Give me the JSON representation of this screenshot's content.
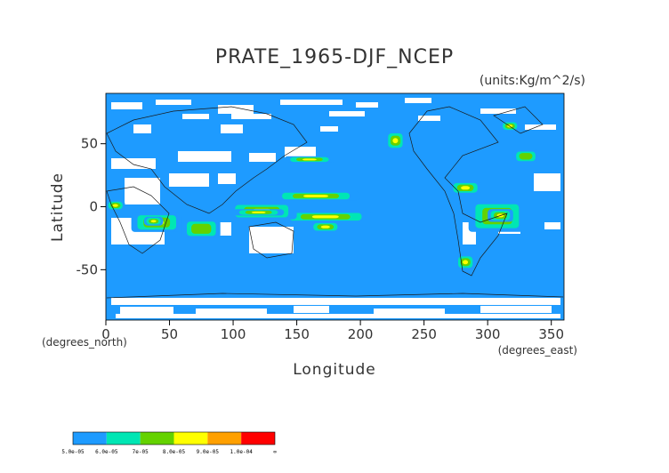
{
  "chart_data": {
    "type": "heatmap",
    "title": "PRATE_1965-DJF_NCEP",
    "units": "(units:Kg/m^2/s)",
    "xlabel": "Longitude",
    "ylabel": "Latitude",
    "x_unit_label": "(degrees_east)",
    "y_unit_label": "(degrees_north)",
    "xlim": [
      0,
      360
    ],
    "ylim": [
      -90,
      90
    ],
    "x_ticks": [
      0,
      50,
      100,
      150,
      200,
      250,
      300,
      350
    ],
    "y_ticks": [
      -50,
      0,
      50
    ],
    "x_tick_labels": [
      "0",
      "50",
      "100",
      "150",
      "200",
      "250",
      "300",
      "350"
    ],
    "y_tick_labels": [
      "-50",
      "0",
      "50"
    ],
    "colorbar": {
      "labels": [
        "5.0e-05",
        "6.0e-05",
        "7e-05",
        "8.0e-05",
        "9.0e-05",
        "1.0e-04",
        "∞"
      ],
      "colors": [
        "#1e9bff",
        "#00e6b4",
        "#64d200",
        "#ffff00",
        "#ffa000",
        "#ff0000"
      ]
    },
    "base_color": "#1e9bff",
    "missing_color": "#ffffff",
    "rain_regions": [
      {
        "lon": [
          130,
          200
        ],
        "lat": [
          5,
          12
        ],
        "level": 6
      },
      {
        "lon": [
          135,
          210
        ],
        "lat": [
          -12,
          -4
        ],
        "level": 5
      },
      {
        "lon": [
          160,
          185
        ],
        "lat": [
          -20,
          -12
        ],
        "level": 6
      },
      {
        "lon": [
          95,
          150
        ],
        "lat": [
          -10,
          3
        ],
        "level": 5
      },
      {
        "lon": [
          100,
          140
        ],
        "lat": [
          -7,
          -2
        ],
        "level": 6
      },
      {
        "lon": [
          20,
          60
        ],
        "lat": [
          -20,
          -5
        ],
        "level": 5
      },
      {
        "lon": [
          30,
          45
        ],
        "lat": [
          -15,
          -8
        ],
        "level": 6
      },
      {
        "lon": [
          0,
          15
        ],
        "lat": [
          -3,
          5
        ],
        "level": 6
      },
      {
        "lon": [
          285,
          330
        ],
        "lat": [
          -20,
          5
        ],
        "level": 5
      },
      {
        "lon": [
          300,
          320
        ],
        "lat": [
          -12,
          -2
        ],
        "level": 6
      },
      {
        "lon": [
          275,
          290
        ],
        "lat": [
          -50,
          -38
        ],
        "level": 5
      },
      {
        "lon": [
          220,
          235
        ],
        "lat": [
          45,
          60
        ],
        "level": 5
      },
      {
        "lon": [
          310,
          325
        ],
        "lat": [
          60,
          68
        ],
        "level": 5
      },
      {
        "lon": [
          140,
          180
        ],
        "lat": [
          35,
          40
        ],
        "level": 4
      },
      {
        "lon": [
          270,
          295
        ],
        "lat": [
          10,
          20
        ],
        "level": 5
      },
      {
        "lon": [
          320,
          340
        ],
        "lat": [
          35,
          45
        ],
        "level": 3
      },
      {
        "lon": [
          60,
          90
        ],
        "lat": [
          -25,
          -10
        ],
        "level": 3
      }
    ]
  }
}
